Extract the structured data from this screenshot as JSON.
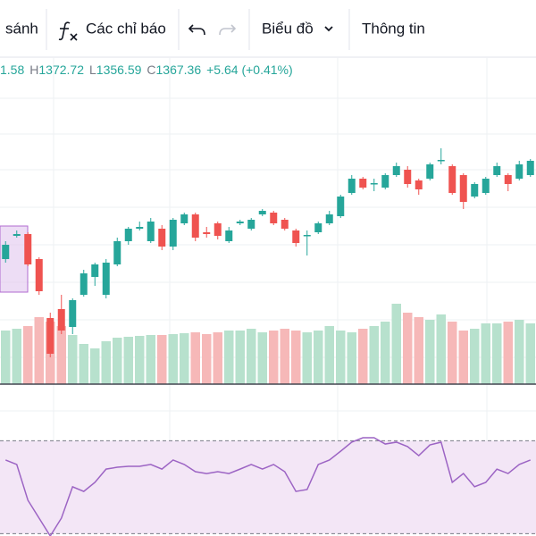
{
  "toolbar": {
    "items": [
      "sánh",
      "Các chỉ báo",
      "Biểu đồ",
      "Thông tin"
    ]
  },
  "legend": {
    "partial": "1.58",
    "fields": [
      {
        "label": "H",
        "value": "1372.72"
      },
      {
        "label": "L",
        "value": "1356.59"
      },
      {
        "label": "C",
        "value": "1367.36"
      }
    ],
    "change": "+5.64 (+0.41%)"
  },
  "chart_data": {
    "type": "candlestick",
    "up_color": "#26a69a",
    "down_color": "#ef5350",
    "ylim": [
      1250,
      1415
    ],
    "open": [
      1320,
      1333,
      1334,
      1320,
      1287,
      1292,
      1282,
      1300,
      1310,
      1300,
      1317,
      1330,
      1337,
      1330,
      1337,
      1327,
      1340,
      1345,
      1335,
      1340,
      1330,
      1340,
      1337,
      1345,
      1346,
      1342,
      1336,
      1333,
      1335,
      1340,
      1344,
      1357,
      1365,
      1362,
      1360,
      1367,
      1370,
      1364,
      1365,
      1375,
      1372,
      1367,
      1355,
      1357,
      1367,
      1367,
      1365,
      1367
    ],
    "high": [
      1330,
      1336,
      1335,
      1321,
      1290,
      1300,
      1298,
      1314,
      1318,
      1320,
      1332,
      1338,
      1341,
      1343,
      1339,
      1343,
      1346,
      1346,
      1338,
      1341,
      1338,
      1342,
      1343,
      1348,
      1347,
      1343,
      1337,
      1336,
      1341,
      1347,
      1356,
      1367,
      1366,
      1365,
      1368,
      1374,
      1372,
      1365,
      1374,
      1382,
      1373,
      1368,
      1363,
      1366,
      1374,
      1368,
      1375,
      1376
    ],
    "low": [
      1318,
      1332,
      1316,
      1300,
      1265,
      1278,
      1278,
      1299,
      1305,
      1298,
      1316,
      1328,
      1336,
      1329,
      1325,
      1325,
      1339,
      1330,
      1332,
      1331,
      1329,
      1339,
      1336,
      1344,
      1339,
      1336,
      1327,
      1322,
      1334,
      1339,
      1343,
      1356,
      1359,
      1358,
      1359,
      1366,
      1360,
      1356,
      1364,
      1373,
      1356,
      1348,
      1354,
      1356,
      1366,
      1358,
      1364,
      1366
    ],
    "close": [
      1328,
      1334,
      1317,
      1302,
      1267,
      1280,
      1297,
      1312,
      1317,
      1318,
      1330,
      1337,
      1338,
      1341,
      1327,
      1342,
      1345,
      1332,
      1334,
      1333,
      1336,
      1341,
      1342,
      1347,
      1340,
      1337,
      1329,
      1333.5,
      1340,
      1345,
      1355,
      1365,
      1360,
      1362.5,
      1367,
      1372,
      1362,
      1359,
      1373,
      1375.5,
      1357,
      1352,
      1362,
      1365,
      1372,
      1362,
      1373,
      1375
    ],
    "volume": {
      "ylim": [
        0,
        100
      ],
      "up_color": "#b7e1cd",
      "down_color": "#f6b8b8",
      "values": [
        60,
        62,
        65,
        75,
        70,
        65,
        55,
        45,
        40,
        48,
        52,
        53,
        54,
        55,
        55,
        56,
        57,
        58,
        56,
        58,
        60,
        60,
        62,
        58,
        60,
        62,
        60,
        58,
        60,
        65,
        60,
        58,
        62,
        65,
        70,
        90,
        80,
        75,
        72,
        78,
        70,
        60,
        62,
        68,
        68,
        70,
        72,
        68
      ]
    },
    "rsi": {
      "ylim": [
        29,
        79
      ],
      "bands": [
        30,
        70
      ],
      "color": "#9c64c4",
      "band_fill": "#f3e6f6",
      "values": [
        61.7,
        59.8,
        44.4,
        36.7,
        29,
        36.7,
        50.2,
        48.2,
        52.1,
        57.8,
        58.6,
        59,
        59,
        59.8,
        57.8,
        61.7,
        59.8,
        56.7,
        55.9,
        56.7,
        55.9,
        57.8,
        59.8,
        57.8,
        59.8,
        56.7,
        48.2,
        49,
        59.8,
        61.7,
        65.5,
        69.4,
        71.3,
        71.3,
        68.6,
        69.4,
        67.5,
        63.6,
        68.2,
        69.4,
        52.1,
        55.9,
        50.2,
        52.1,
        57.8,
        55.9,
        59.8,
        61.7
      ]
    }
  }
}
